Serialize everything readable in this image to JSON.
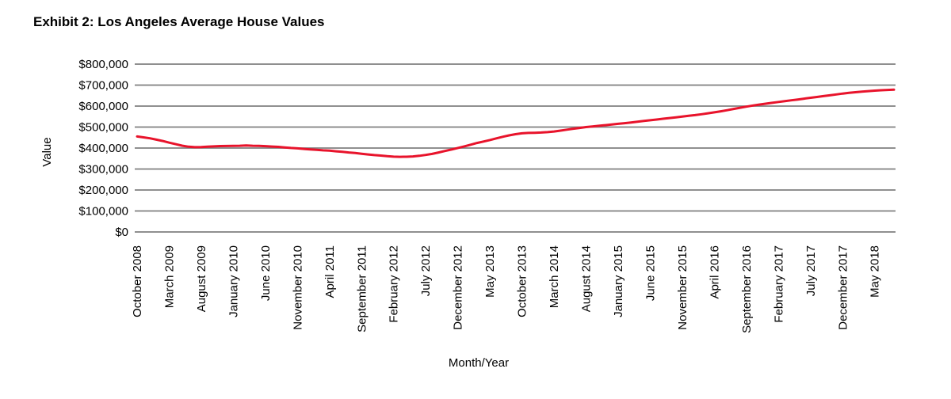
{
  "title": "Exhibit 2: Los Angeles Average House Values",
  "chart_data": {
    "type": "line",
    "title": "Exhibit 2: Los Angeles Average House Values",
    "xlabel": "Month/Year",
    "ylabel": "Value",
    "ylim": [
      0,
      800000
    ],
    "y_tick_step": 100000,
    "y_tick_labels": [
      "$0",
      "$100,000",
      "$200,000",
      "$300,000",
      "$400,000",
      "$500,000",
      "$600,000",
      "$700,000",
      "$800,000"
    ],
    "x_tick_labels": [
      "October 2008",
      "March 2009",
      "August 2009",
      "January 2010",
      "June 2010",
      "November 2010",
      "April 2011",
      "September 2011",
      "February 2012",
      "July 2012",
      "December 2012",
      "May 2013",
      "October 2013",
      "March 2014",
      "August 2014",
      "January 2015",
      "June 2015",
      "November 2015",
      "April 2016",
      "September 2016",
      "February 2017",
      "July 2017",
      "December 2017",
      "May 2018"
    ],
    "x_tick_interval_months": 5,
    "x_start": "October 2008",
    "x_end": "August 2018",
    "grid": "horizontal",
    "legend": "none",
    "line_color": "#e8132b",
    "grid_color": "#7f7f7f",
    "values": [
      455000,
      451000,
      446500,
      440000,
      433500,
      425500,
      418500,
      411500,
      406500,
      404000,
      404500,
      406500,
      408000,
      409500,
      410000,
      410500,
      411000,
      412000,
      411000,
      410500,
      409000,
      407000,
      405500,
      403000,
      400500,
      398500,
      396000,
      393500,
      391500,
      389000,
      387500,
      384500,
      382000,
      379000,
      376500,
      373000,
      369500,
      366500,
      364000,
      361000,
      359000,
      358000,
      358500,
      360000,
      363000,
      367000,
      372000,
      379000,
      386000,
      393000,
      400500,
      408000,
      416000,
      424000,
      431000,
      438000,
      446000,
      453500,
      460500,
      466000,
      470000,
      472000,
      473000,
      474000,
      476000,
      479000,
      483000,
      487500,
      492000,
      496000,
      500000,
      503000,
      506000,
      509000,
      512000,
      515500,
      518500,
      522000,
      525500,
      529000,
      532500,
      536000,
      539500,
      543000,
      546500,
      550000,
      553500,
      557000,
      561000,
      565500,
      570000,
      575000,
      580500,
      586500,
      592000,
      597500,
      602500,
      607000,
      611500,
      615500,
      619500,
      623500,
      627500,
      631500,
      635500,
      639500,
      643500,
      647500,
      651500,
      655500,
      659500,
      663000,
      666000,
      669000,
      671500,
      673500,
      675500,
      677000,
      678000
    ]
  }
}
